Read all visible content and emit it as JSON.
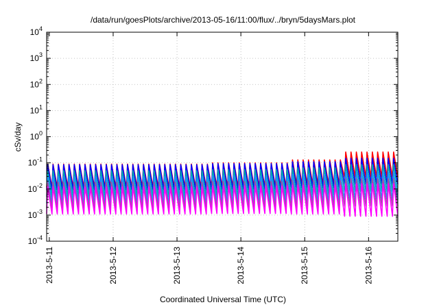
{
  "chart_data": {
    "type": "line",
    "title": "/data/run/goesPlots/archive/2013-05-16/11:00/flux/../bryn/5daysMars.plot",
    "xlabel": "Coordinated Universal Time (UTC)",
    "ylabel": "cSv/day",
    "yscale": "log",
    "ylim": [
      0.0001,
      10000
    ],
    "xlim": [
      "2013-05-10T23:00",
      "2013-05-16T11:00"
    ],
    "grid": true,
    "x_ticks": [
      "2013-5-11",
      "2013-5-12",
      "2013-5-13",
      "2013-5-14",
      "2013-5-15",
      "2013-5-16"
    ],
    "y_ticks": [
      {
        "value": 0.0001,
        "base": "10",
        "exp": "-4"
      },
      {
        "value": 0.001,
        "base": "10",
        "exp": "-3"
      },
      {
        "value": 0.01,
        "base": "10",
        "exp": "-2"
      },
      {
        "value": 0.1,
        "base": "10",
        "exp": "-1"
      },
      {
        "value": 1,
        "base": "10",
        "exp": "0"
      },
      {
        "value": 10,
        "base": "10",
        "exp": "1"
      },
      {
        "value": 100,
        "base": "10",
        "exp": "2"
      },
      {
        "value": 1000,
        "base": "10",
        "exp": "3"
      },
      {
        "value": 10000,
        "base": "10",
        "exp": "4"
      }
    ],
    "cycle_hours": 2,
    "series": [
      {
        "color": "#ff0000",
        "peaks": [
          0.09,
          0.1,
          0.13,
          0.26
        ],
        "troughs": [
          0.0115,
          0.012,
          0.015,
          0.028
        ]
      },
      {
        "color": "#0000ff",
        "peaks": [
          0.085,
          0.093,
          0.11,
          0.15
        ],
        "troughs": [
          0.009,
          0.0095,
          0.011,
          0.015
        ]
      },
      {
        "color": "#00aaaa",
        "peaks": [
          0.05,
          0.055,
          0.065,
          0.085
        ],
        "troughs": [
          0.005,
          0.0053,
          0.006,
          0.008
        ]
      },
      {
        "color": "#1e90ff",
        "peaks": [
          0.03,
          0.032,
          0.036,
          0.045
        ],
        "troughs": [
          0.0028,
          0.003,
          0.0033,
          0.004
        ]
      },
      {
        "color": "#a050a0",
        "peaks": [
          0.018,
          0.019,
          0.021,
          0.025
        ],
        "troughs": [
          0.0018,
          0.0019,
          0.002,
          0.0022
        ]
      },
      {
        "color": "#ff00ff",
        "peaks": [
          0.012,
          0.013,
          0.014,
          0.016
        ],
        "troughs": [
          0.0011,
          0.00115,
          0.0011,
          0.0009
        ]
      }
    ],
    "segment_times": [
      "2013-05-10T23:00",
      "2013-05-13T12:00",
      "2013-05-14T18:00",
      "2013-05-15T14:00",
      "2013-05-16T11:00"
    ]
  }
}
